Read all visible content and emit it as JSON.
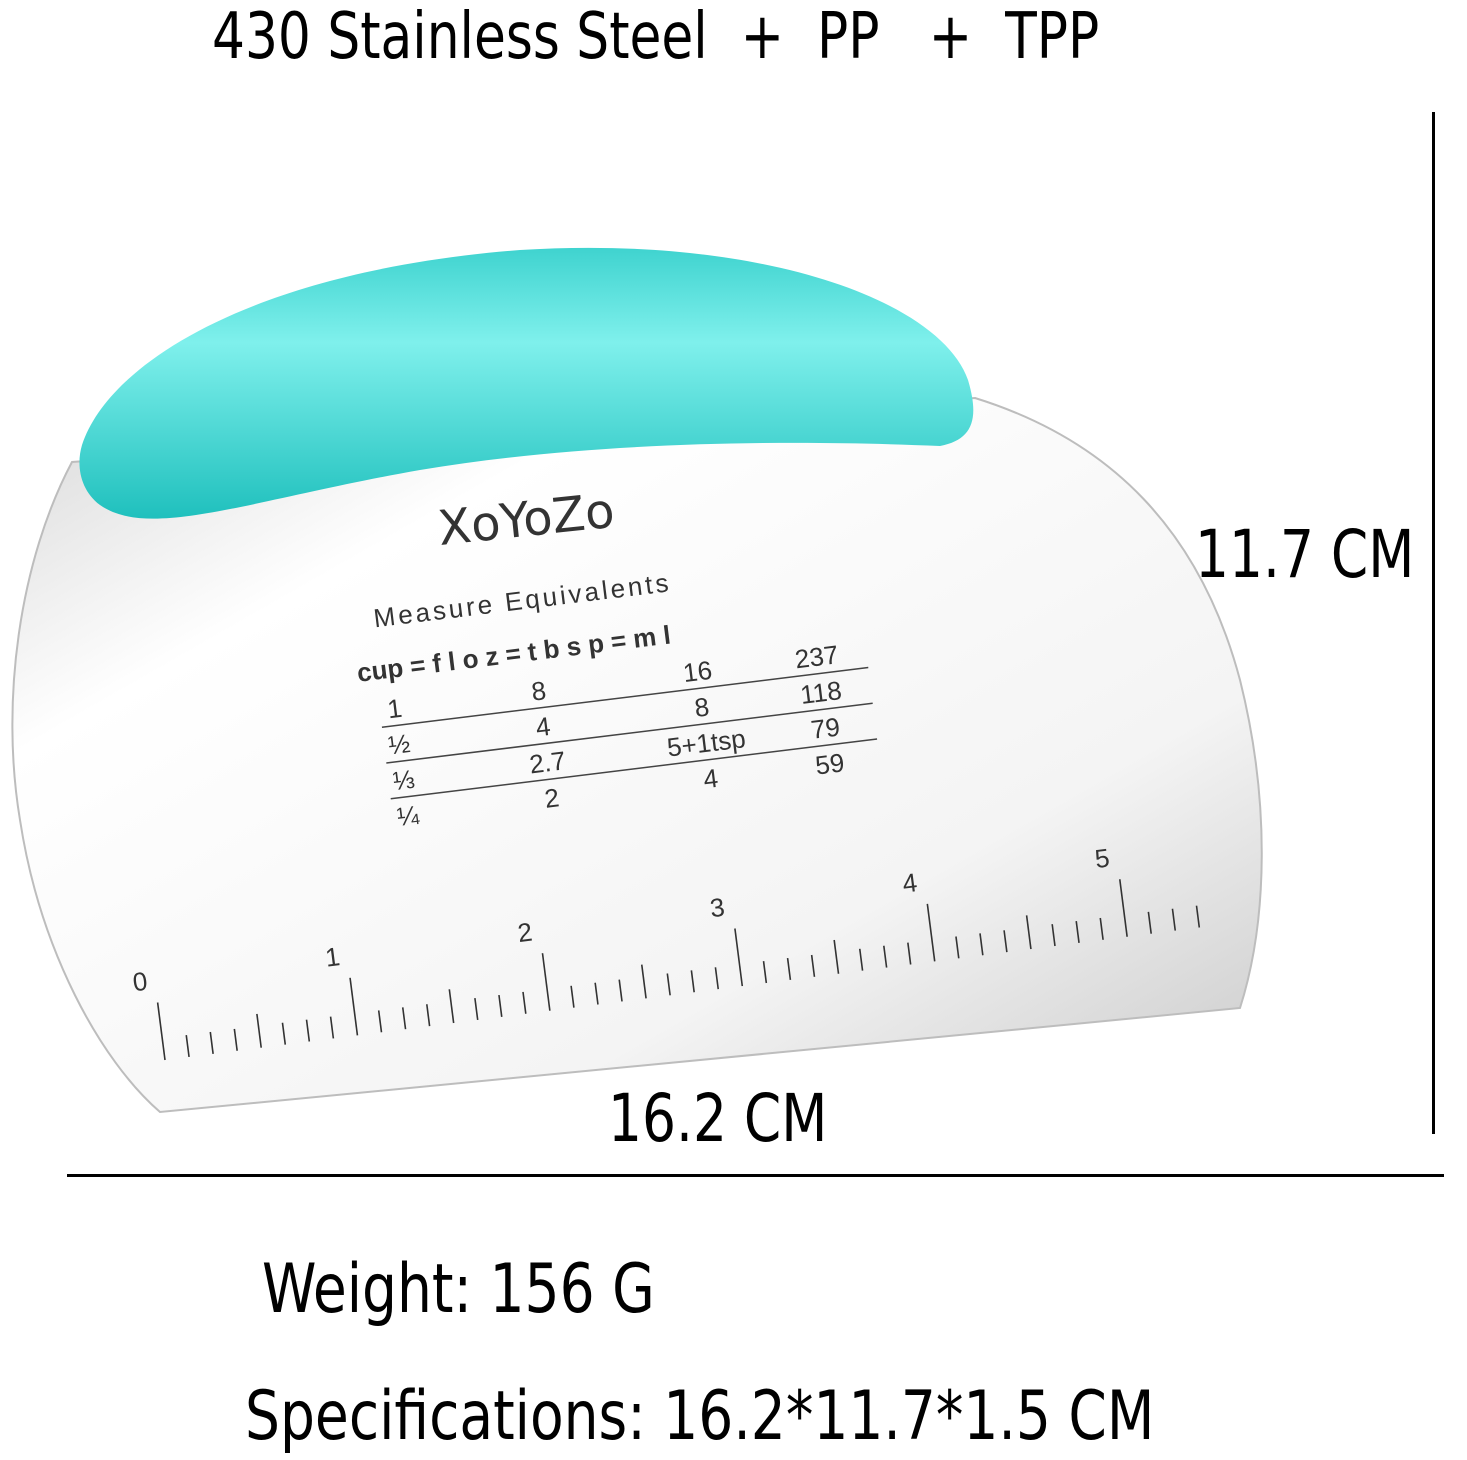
{
  "title": "430 Stainless Steel  +  PP   +  TPP",
  "dimensions": {
    "height": "11.7 CM",
    "width": "16.2 CM"
  },
  "weight": "Weight: 156 G",
  "specifications": "Specifications: 16.2*11.7*1.5 CM",
  "product": {
    "brand": "XoYoZo",
    "handle_color": "#3fd3cf",
    "blade_color": "#f2f2f2",
    "table": {
      "title": "Measure Equivalents",
      "header": "cup  =  f l o z  =  t b s p  =  m l",
      "rows": [
        {
          "cup": "1",
          "floz": "8",
          "tbsp": "16",
          "ml": "237"
        },
        {
          "cup": "½",
          "floz": "4",
          "tbsp": "8",
          "ml": "118"
        },
        {
          "cup": "⅓",
          "floz": "2.7",
          "tbsp": "5+1tsp",
          "ml": "79"
        },
        {
          "cup": "¼",
          "floz": "2",
          "tbsp": "4",
          "ml": "59"
        }
      ]
    },
    "ruler_labels": [
      "0",
      "1",
      "2",
      "3",
      "4",
      "5"
    ]
  }
}
